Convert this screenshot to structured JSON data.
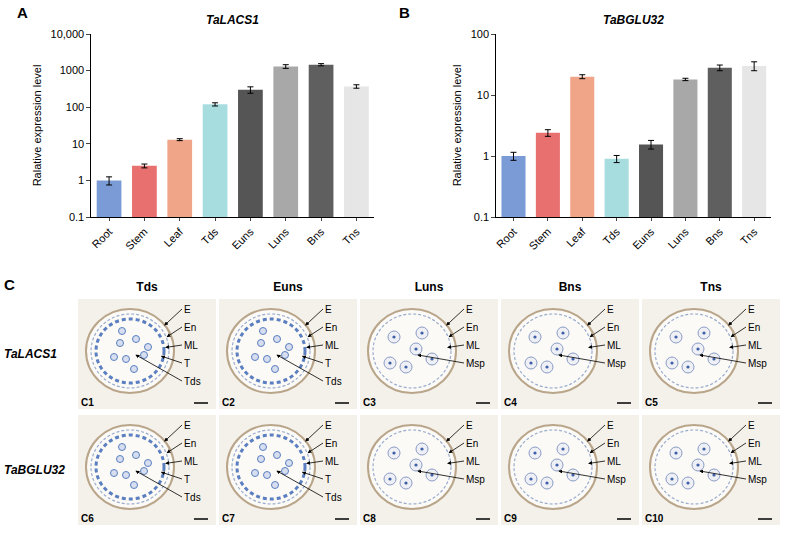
{
  "chart_data": [
    {
      "type": "bar",
      "label": "A",
      "title": "TaLACS1",
      "y_label": "Ralative expression level",
      "categories": [
        "Root",
        "Stem",
        "Leaf",
        "Tds",
        "Euns",
        "Luns",
        "Bns",
        "Tns"
      ],
      "values": [
        1,
        2.5,
        13,
        120,
        300,
        1300,
        1450,
        370
      ],
      "errors": [
        0.25,
        0.3,
        0.8,
        12,
        60,
        150,
        100,
        40
      ],
      "colors": [
        "#7b9bd6",
        "#e8706f",
        "#f0a589",
        "#a8dde0",
        "#555555",
        "#a8a8a8",
        "#5f5f5f",
        "#e6e6e6"
      ],
      "log": "y",
      "grid": false,
      "ylim": [
        0.1,
        10000
      ],
      "yticks": [
        {
          "value": 0.1,
          "label": "0.1"
        },
        1,
        10,
        100,
        1000,
        {
          "value": 10000,
          "label": "10,000"
        }
      ]
    },
    {
      "type": "bar",
      "label": "B",
      "title": "TaBGLU32",
      "y_label": "Ralative expression level",
      "categories": [
        "Root",
        "Stem",
        "Leaf",
        "Tds",
        "Euns",
        "Luns",
        "Bns",
        "Tns"
      ],
      "values": [
        1.0,
        2.4,
        20,
        0.9,
        1.55,
        18,
        28,
        30
      ],
      "errors": [
        0.15,
        0.3,
        1.5,
        0.12,
        0.25,
        0.8,
        3,
        5
      ],
      "colors": [
        "#7b9bd6",
        "#e8706f",
        "#f0a589",
        "#a8dde0",
        "#555555",
        "#a8a8a8",
        "#5f5f5f",
        "#e6e6e6"
      ],
      "log": "y",
      "grid": false,
      "ylim": [
        0.1,
        100
      ],
      "yticks": [
        {
          "value": 0.1,
          "label": "0.1"
        },
        1,
        10,
        100
      ]
    }
  ],
  "panel_c": {
    "label": "C",
    "columns": [
      "Tds",
      "Euns",
      "Luns",
      "Bns",
      "Tns"
    ],
    "rows": [
      {
        "gene": "TaLACS1",
        "panels": [
          {
            "id": "C1",
            "labels": [
              "E",
              "En",
              "ML",
              "T",
              "Tds"
            ]
          },
          {
            "id": "C2",
            "labels": [
              "E",
              "En",
              "ML",
              "T",
              "Tds"
            ]
          },
          {
            "id": "C3",
            "labels": [
              "E",
              "En",
              "ML",
              "Msp"
            ]
          },
          {
            "id": "C4",
            "labels": [
              "E",
              "En",
              "ML",
              "Msp"
            ]
          },
          {
            "id": "C5",
            "labels": [
              "E",
              "En",
              "ML",
              "Msp"
            ]
          }
        ]
      },
      {
        "gene": "TaBGLU32",
        "panels": [
          {
            "id": "C6",
            "labels": [
              "E",
              "En",
              "ML",
              "T",
              "Tds"
            ]
          },
          {
            "id": "C7",
            "labels": [
              "E",
              "En",
              "ML",
              "T",
              "Tds"
            ]
          },
          {
            "id": "C8",
            "labels": [
              "E",
              "En",
              "ML",
              "Msp"
            ]
          },
          {
            "id": "C9",
            "labels": [
              "E",
              "En",
              "ML",
              "Msp"
            ]
          },
          {
            "id": "C10",
            "labels": [
              "E",
              "En",
              "ML",
              "Msp"
            ]
          }
        ]
      }
    ]
  }
}
